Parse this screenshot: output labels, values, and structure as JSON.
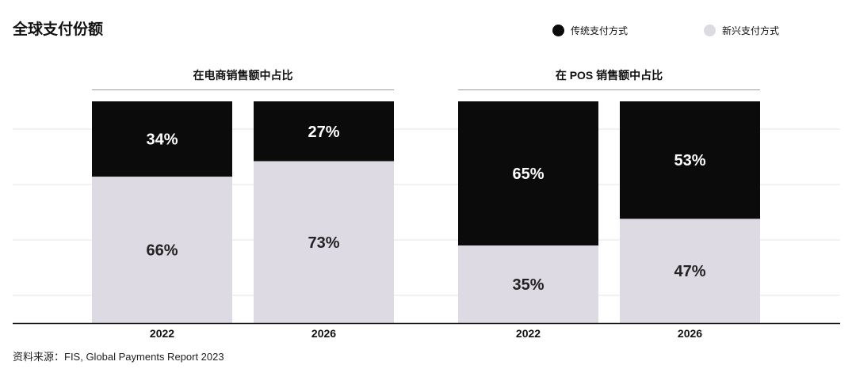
{
  "title": "全球支付份额",
  "source": "资料来源：FIS, Global Payments Report 2023",
  "chart_data": {
    "type": "bar",
    "stacked": true,
    "normalized": true,
    "legend_position": "top-right",
    "grid": true,
    "legend": [
      {
        "name": "传统支付方式",
        "color": "#0b0b0b"
      },
      {
        "name": "新兴支付方式",
        "color": "#dddae3"
      }
    ],
    "groups": [
      {
        "title": "在电商销售额中占比",
        "categories": [
          "2022",
          "2026"
        ],
        "series": [
          {
            "name": "传统支付方式",
            "values": [
              34,
              27
            ]
          },
          {
            "name": "新兴支付方式",
            "values": [
              66,
              73
            ]
          }
        ]
      },
      {
        "title": "在 POS 销售额中占比",
        "categories": [
          "2022",
          "2026"
        ],
        "series": [
          {
            "name": "传统支付方式",
            "values": [
              65,
              53
            ]
          },
          {
            "name": "新兴支付方式",
            "values": [
              35,
              47
            ]
          }
        ]
      }
    ]
  }
}
